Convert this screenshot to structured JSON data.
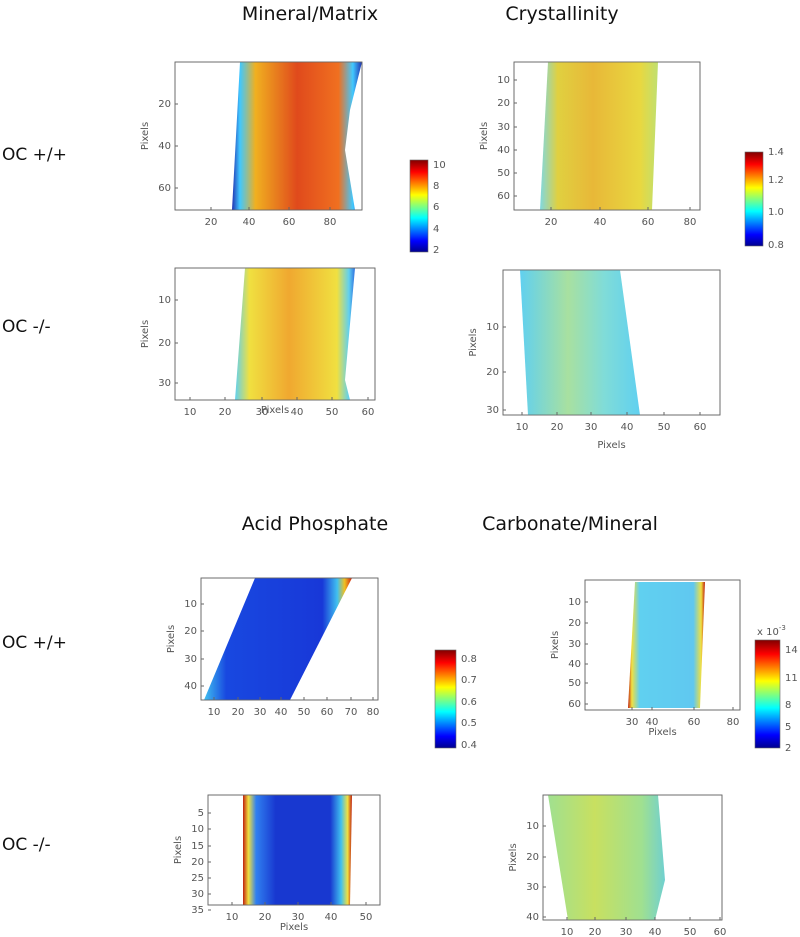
{
  "column_titles": [
    "Mineral/Matrix",
    "Crystallinity",
    "Acid Phosphate",
    "Carbonate/Mineral"
  ],
  "row_labels": [
    "OC +/+",
    "OC -/-",
    "OC +/+",
    "OC -/-"
  ],
  "axis_label": "Pixels",
  "panels": [
    {
      "xticks": [
        "20",
        "40",
        "60",
        "80"
      ],
      "yticks": [
        "20",
        "40",
        "60"
      ],
      "colorbar": [
        "10",
        "8",
        "6",
        "4",
        "2"
      ]
    },
    {
      "xticks": [
        "20",
        "40",
        "60",
        "80"
      ],
      "yticks": [
        "10",
        "20",
        "30",
        "40",
        "50",
        "60"
      ],
      "colorbar": [
        "1.4",
        "1.2",
        "1.0",
        "0.8"
      ]
    },
    {
      "xticks": [
        "10",
        "20",
        "30",
        "40",
        "50",
        "60"
      ],
      "yticks": [
        "10",
        "20",
        "30"
      ]
    },
    {
      "xticks": [
        "10",
        "20",
        "30",
        "40",
        "50",
        "60"
      ],
      "yticks": [
        "10",
        "20",
        "30"
      ]
    },
    {
      "xticks": [
        "10",
        "20",
        "30",
        "40",
        "50",
        "60",
        "70",
        "80"
      ],
      "yticks": [
        "10",
        "20",
        "30",
        "40"
      ],
      "colorbar": [
        "0.8",
        "0.7",
        "0.6",
        "0.5",
        "0.4"
      ]
    },
    {
      "xticks": [
        "30",
        "40",
        "60",
        "80"
      ],
      "yticks": [
        "10",
        "20",
        "30",
        "40",
        "50",
        "60"
      ],
      "colorbar": [
        "14",
        "11",
        "8",
        "5",
        "2"
      ],
      "colorbar_scale": {
        "base": "x 10",
        "exponent": "-3"
      }
    },
    {
      "xticks": [
        "10",
        "20",
        "30",
        "40",
        "50"
      ],
      "yticks": [
        "5",
        "10",
        "15",
        "20",
        "25",
        "30",
        "35"
      ]
    },
    {
      "xticks": [
        "10",
        "20",
        "30",
        "40",
        "50",
        "60"
      ],
      "yticks": [
        "10",
        "20",
        "30",
        "40"
      ]
    }
  ]
}
